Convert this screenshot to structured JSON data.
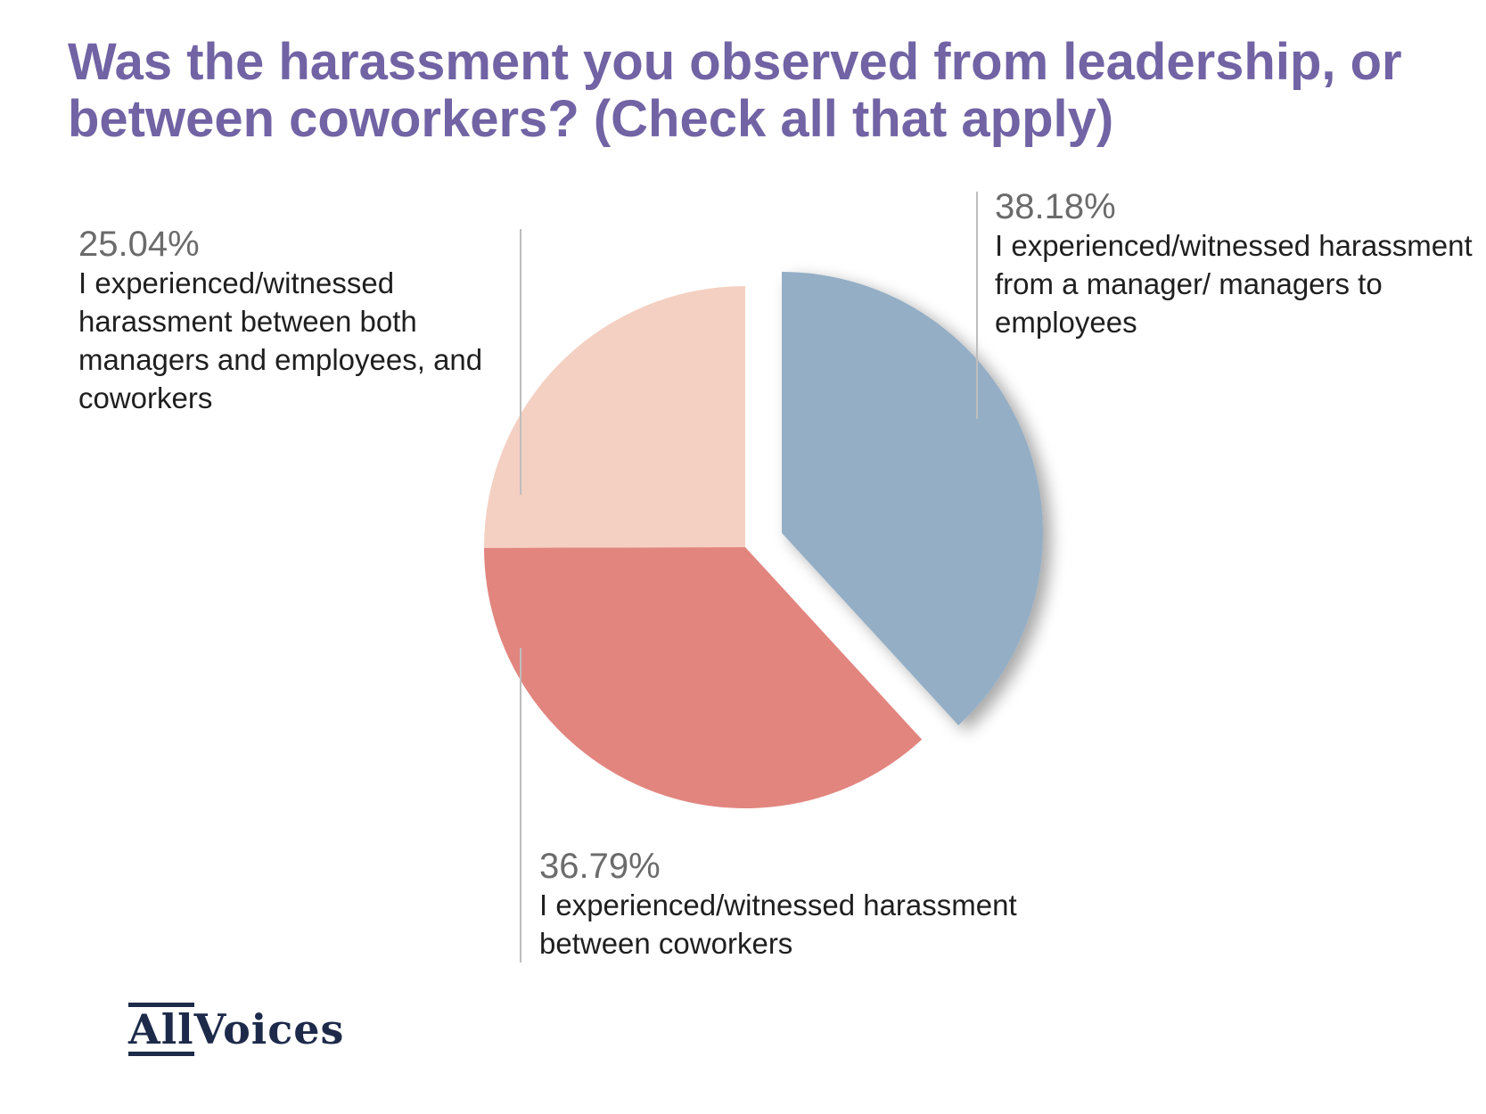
{
  "title": "Was the harassment you observed from leadership, or between coworkers? (Check all that apply)",
  "chart_data": {
    "type": "pie",
    "title": "Was the harassment you observed from leadership, or between coworkers? (Check all that apply)",
    "slices": [
      {
        "label": "I experienced/witnessed harassment from a manager/ managers to employees",
        "value": 38.18,
        "value_text": "38.18%",
        "color": "#94aec5",
        "exploded": true
      },
      {
        "label": "I experienced/witnessed harassment between coworkers",
        "value": 36.79,
        "value_text": "36.79%",
        "color": "#e2857f"
      },
      {
        "label": "I experienced/witnessed harassment between both managers and employees, and coworkers",
        "value": 25.04,
        "value_text": "25.04%",
        "color": "#f4d0c2"
      }
    ]
  },
  "logo": {
    "part1": "All",
    "part2": "Voices"
  }
}
